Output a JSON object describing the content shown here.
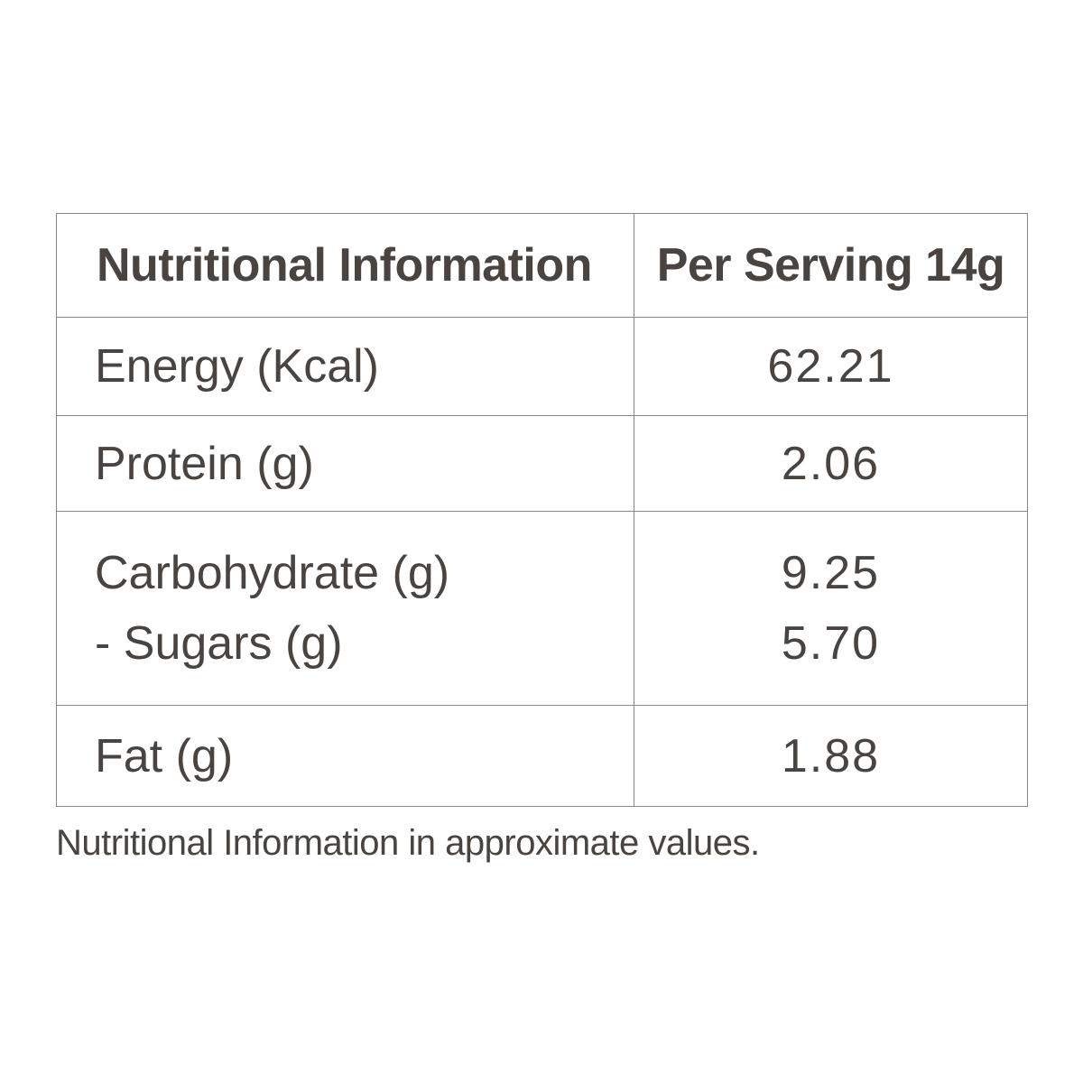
{
  "table": {
    "header": {
      "label": "Nutritional Information",
      "value": "Per Serving 14g"
    },
    "rows": [
      {
        "label": "Energy (Kcal)",
        "value": "62.21"
      },
      {
        "label": "Protein (g)",
        "value": "2.06"
      },
      {
        "label": "Carbohydrate (g)",
        "value": "9.25",
        "sub_label": "- Sugars (g)",
        "sub_value": "5.70"
      },
      {
        "label": "Fat (g)",
        "value": "1.88"
      }
    ]
  },
  "footnote": "Nutritional Information in approximate values.",
  "colors": {
    "text": "#4a4441",
    "border": "#8a8684",
    "background": "#ffffff"
  }
}
